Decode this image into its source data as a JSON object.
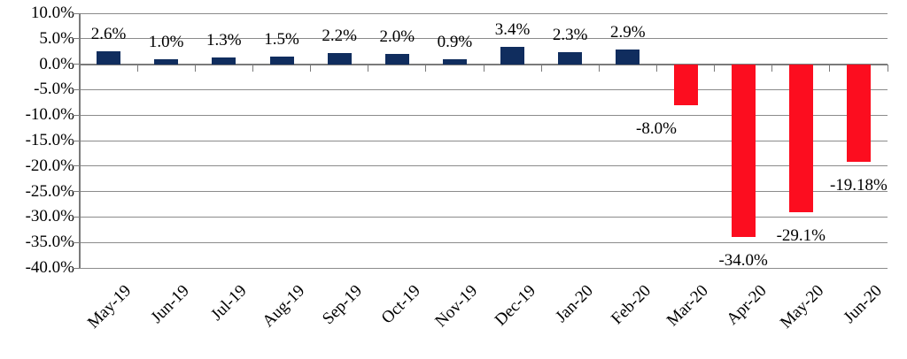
{
  "chart_data": {
    "type": "bar",
    "title": "",
    "xlabel": "",
    "ylabel": "",
    "legend": "none",
    "grid": true,
    "categories": [
      "May-19",
      "Jun-19",
      "Jul-19",
      "Aug-19",
      "Sep-19",
      "Oct-19",
      "Nov-19",
      "Dec-19",
      "Jan-20",
      "Feb-20",
      "Mar-20",
      "Apr-20",
      "May-20",
      "Jun-20"
    ],
    "values": [
      2.6,
      1.0,
      1.3,
      1.5,
      2.2,
      2.0,
      0.9,
      3.4,
      2.3,
      2.9,
      -8.0,
      -34.0,
      -29.1,
      -19.18
    ],
    "data_labels": [
      "2.6%",
      "1.0%",
      "1.3%",
      "1.5%",
      "2.2%",
      "2.0%",
      "0.9%",
      "3.4%",
      "2.3%",
      "2.9%",
      "-8.0%",
      "-34.0%",
      "-29.1%",
      "-19.18%"
    ],
    "label_x_offsets": [
      0,
      0,
      0,
      0,
      0,
      0,
      0,
      0,
      0,
      0,
      -33,
      0,
      0,
      0
    ],
    "y_ticks": [
      "10.0%",
      "5.0%",
      "0.0%",
      "-5.0%",
      "-10.0%",
      "-15.0%",
      "-20.0%",
      "-25.0%",
      "-30.0%",
      "-35.0%",
      "-40.0%"
    ],
    "ylim": [
      -40,
      10
    ],
    "y_step": 5,
    "colors": {
      "positive_bar": "#102d5e",
      "negative_bar": "#fc0d1f",
      "gridline": "#8b8b8b",
      "axis": "#7a7a7a",
      "label_text": "#000000",
      "background": "#ffffff"
    }
  }
}
